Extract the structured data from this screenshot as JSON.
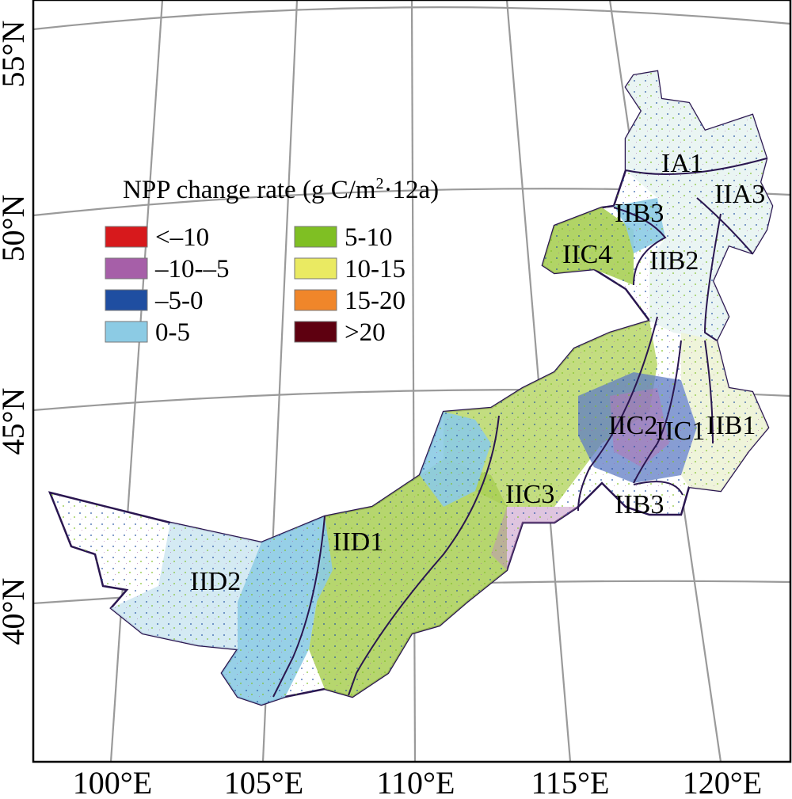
{
  "map": {
    "latitude_labels": [
      "55°N",
      "50°N",
      "45°N",
      "40°N"
    ],
    "longitude_labels": [
      "100°E",
      "105°E",
      "110°E",
      "115°E",
      "120°E"
    ],
    "regions": [
      "IA1",
      "IIA3",
      "IIB3",
      "IIC4",
      "IIB2",
      "IIC2",
      "IIC1",
      "IIB1",
      "IIC3",
      "IIB3",
      "IID1",
      "IID2"
    ]
  },
  "legend": {
    "title_main": "NPP change rate (g C/m",
    "title_sup": "2",
    "title_end": "·12a)",
    "items": [
      {
        "label": "<–10",
        "color": "#d7191c"
      },
      {
        "label": "–10-–5",
        "color": "#a65fa8"
      },
      {
        "label": "–5-0",
        "color": "#1f4ea1"
      },
      {
        "label": "0-5",
        "color": "#8ccbe4"
      },
      {
        "label": "5-10",
        "color": "#7fbf23"
      },
      {
        "label": "10-15",
        "color": "#eaea62"
      },
      {
        "label": "15-20",
        "color": "#f0862a"
      },
      {
        "label": ">20",
        "color": "#5e0010"
      }
    ]
  }
}
